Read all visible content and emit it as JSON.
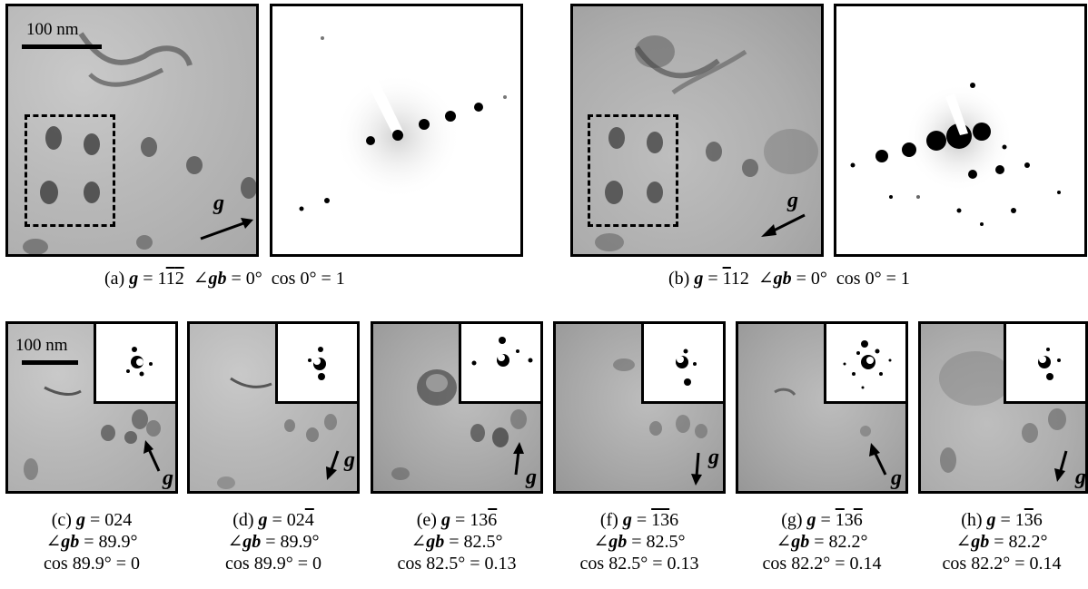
{
  "scale_bar_label": "100 nm",
  "g_vector_symbol": "g",
  "top_panels": [
    {
      "id": "a",
      "caption": "(a) g = 1̅2 ̅2 ∠gb = 0°  cos 0° = 1",
      "letter": "(a)",
      "g_value": "1",
      "g_bar1": "1",
      "g_bar2": "2",
      "angle": "= 0°",
      "cos": "cos 0° = 1"
    },
    {
      "id": "b",
      "caption": "(b)",
      "letter": "(b)",
      "g_bar0": "1",
      "g_tail": "12",
      "angle": "= 0°",
      "cos": "cos 0° = 1"
    }
  ],
  "bottom_panels": [
    {
      "id": "c",
      "letter": "(c)",
      "g_text": "024",
      "angle": "= 89.9°",
      "cos": "cos 89.9° = 0"
    },
    {
      "id": "d",
      "letter": "(d)",
      "g_plain": "02",
      "g_bar": "4",
      "angle": "= 89.9°",
      "cos": "cos 89.9° = 0"
    },
    {
      "id": "e",
      "letter": "(e)",
      "g_plain": "13",
      "g_bar": "6",
      "angle": "= 82.5°",
      "cos": "cos 82.5° = 0.13"
    },
    {
      "id": "f",
      "letter": "(f)",
      "g_bar": "13",
      "g_plain": "6",
      "angle": "= 82.5°",
      "cos": "cos 82.5° = 0.13"
    },
    {
      "id": "g",
      "letter": "(g)",
      "g_bar_a": "1",
      "g_plain": "3",
      "g_bar_b": "6",
      "angle": "= 82.2°",
      "cos": "cos 82.2° = 0.14"
    },
    {
      "id": "h",
      "letter": "(h)",
      "g_plain_a": "1",
      "g_bar": "3",
      "g_plain_b": "6",
      "angle": "= 82.2°",
      "cos": "cos 82.2° = 0.14"
    }
  ],
  "angle_symbol": "∠gb",
  "equals": "="
}
